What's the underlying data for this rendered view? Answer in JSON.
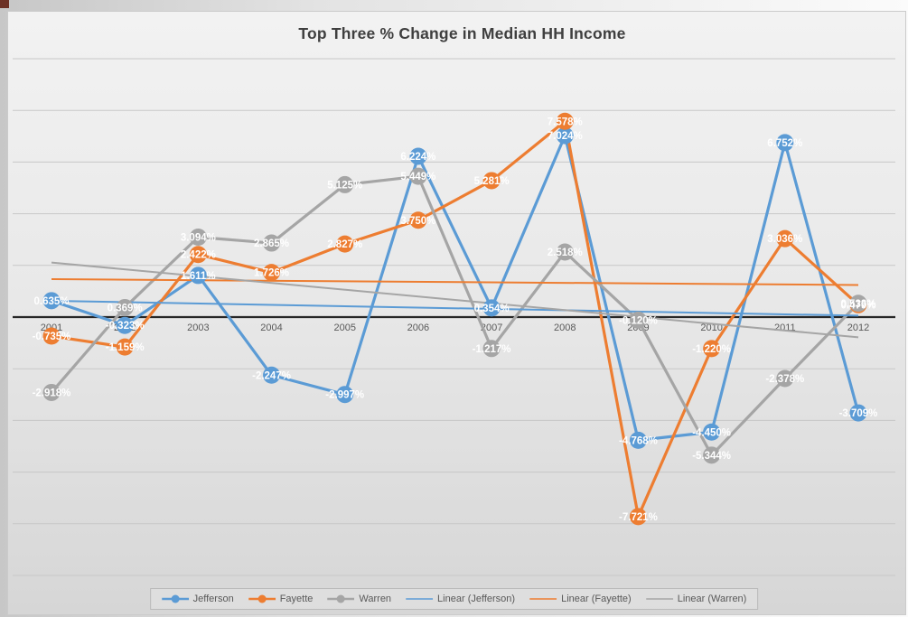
{
  "title": "Top Three % Change in Median HH Income",
  "chart_data": {
    "type": "line",
    "x": [
      "2001",
      "2002",
      "2003",
      "2004",
      "2005",
      "2006",
      "2007",
      "2008",
      "2009",
      "2010",
      "2011",
      "2012"
    ],
    "series": [
      {
        "name": "Jefferson",
        "color": "#5B9BD5",
        "values": [
          0.635,
          -0.323,
          1.611,
          -2.247,
          -2.997,
          6.224,
          0.354,
          7.024,
          -4.768,
          -4.45,
          6.752,
          -3.709
        ]
      },
      {
        "name": "Fayette",
        "color": "#ED7D31",
        "values": [
          -0.735,
          -1.159,
          2.422,
          1.726,
          2.827,
          3.75,
          5.281,
          7.578,
          -7.721,
          -1.22,
          3.036,
          0.479
        ]
      },
      {
        "name": "Warren",
        "color": "#A5A5A5",
        "values": [
          -2.918,
          0.369,
          3.094,
          2.865,
          5.125,
          5.449,
          -1.217,
          2.518,
          -0.12,
          -5.344,
          -2.378,
          0.533
        ]
      }
    ],
    "trendlines": [
      {
        "name": "Linear (Jefferson)",
        "series": "Jefferson",
        "color": "#5B9BD5"
      },
      {
        "name": "Linear (Fayette)",
        "series": "Fayette",
        "color": "#ED7D31"
      },
      {
        "name": "Linear (Warren)",
        "series": "Warren",
        "color": "#A5A5A5"
      }
    ],
    "title": "Top Three % Change in Median HH Income",
    "xlabel": "",
    "ylabel": "",
    "ylim": [
      -10,
      10
    ],
    "grid_step": 2,
    "grid": true,
    "label_decimals": 3,
    "label_suffix": "%",
    "legend_position": "bottom",
    "colors": {
      "axis_line": "#262626",
      "gridline": "#c7c7c7",
      "tick_label": "#595959",
      "data_label": "#ffffff"
    }
  }
}
